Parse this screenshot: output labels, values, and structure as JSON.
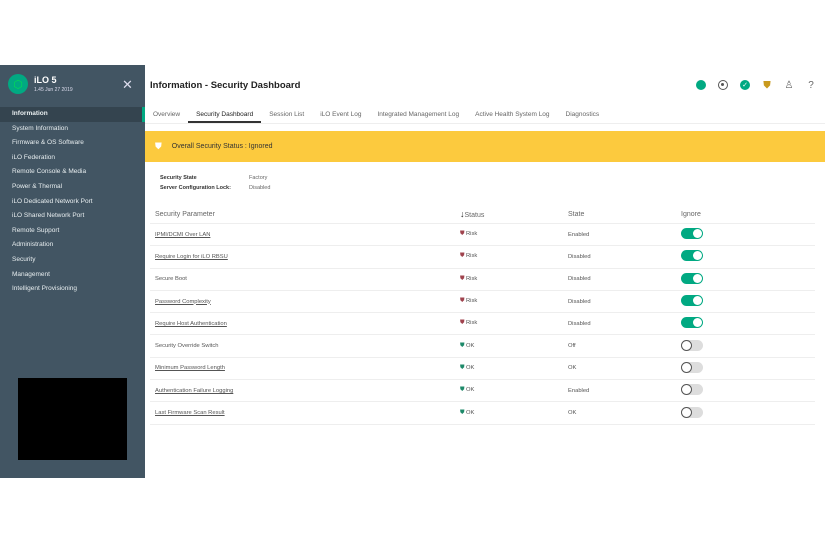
{
  "app": {
    "name": "iLO 5",
    "version": "1.45 Jun 27 2019"
  },
  "sidebar": {
    "items": [
      "Information",
      "System Information",
      "Firmware & OS Software",
      "iLO Federation",
      "Remote Console & Media",
      "Power & Thermal",
      "iLO Dedicated Network Port",
      "iLO Shared Network Port",
      "Remote Support",
      "Administration",
      "Security",
      "Management",
      "Intelligent Provisioning"
    ],
    "active": "Information"
  },
  "header": {
    "title": "Information - Security Dashboard",
    "help": "?"
  },
  "tabs": [
    "Overview",
    "Security Dashboard",
    "Session List",
    "iLO Event Log",
    "Integrated Management Log",
    "Active Health System Log",
    "Diagnostics"
  ],
  "banner": {
    "text": "Overall Security Status : Ignored",
    "color": "#fcca3e"
  },
  "info": {
    "security_state_label": "Security State",
    "security_state": "Factory",
    "lock_label": "Server Configuration Lock:",
    "lock": "Disabled"
  },
  "table": {
    "headers": [
      "Security Parameter",
      "Status",
      "State",
      "Ignore"
    ],
    "rows": [
      {
        "param": "IPMI/DCMI Over LAN",
        "status": "Risk",
        "state": "Enabled",
        "ignore": true,
        "link": true
      },
      {
        "param": "Require Login for iLO RBSU",
        "status": "Risk",
        "state": "Disabled",
        "ignore": true,
        "link": true
      },
      {
        "param": "Secure Boot",
        "status": "Risk",
        "state": "Disabled",
        "ignore": true,
        "link": false
      },
      {
        "param": "Password Complexity",
        "status": "Risk",
        "state": "Disabled",
        "ignore": true,
        "link": true
      },
      {
        "param": "Require Host Authentication",
        "status": "Risk",
        "state": "Disabled",
        "ignore": true,
        "link": true
      },
      {
        "param": "Security Override Switch",
        "status": "OK",
        "state": "Off",
        "ignore": false,
        "link": false
      },
      {
        "param": "Minimum Password Length",
        "status": "OK",
        "state": "OK",
        "ignore": false,
        "link": true
      },
      {
        "param": "Authentication Failure Logging",
        "status": "OK",
        "state": "Enabled",
        "ignore": false,
        "link": true
      },
      {
        "param": "Last Firmware Scan Result",
        "status": "OK",
        "state": "OK",
        "ignore": false,
        "link": true
      }
    ]
  }
}
